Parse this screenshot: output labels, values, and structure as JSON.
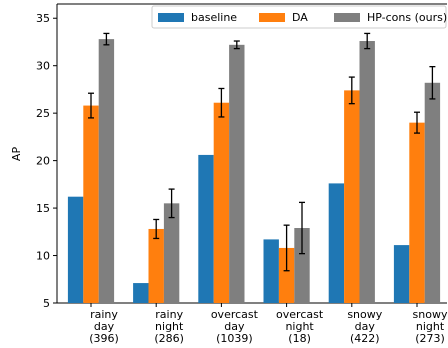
{
  "chart_data": {
    "type": "bar",
    "title": "",
    "xlabel": "",
    "ylabel": "AP",
    "ylim": [
      5,
      36.5
    ],
    "yticks": [
      5,
      10,
      15,
      20,
      25,
      30,
      35
    ],
    "categories": [
      [
        "rainy",
        "day",
        "(396)"
      ],
      [
        "rainy",
        "night",
        "(286)"
      ],
      [
        "overcast",
        "day",
        "(1039)"
      ],
      [
        "overcast",
        "night",
        "(18)"
      ],
      [
        "snowy",
        "day",
        "(422)"
      ],
      [
        "snowy",
        "night",
        "(273)"
      ]
    ],
    "series": [
      {
        "name": "baseline",
        "color": "#1f77b4",
        "values": [
          16.2,
          7.1,
          20.6,
          11.7,
          17.6,
          11.1
        ],
        "errors": [
          0,
          0,
          0,
          0,
          0,
          0
        ]
      },
      {
        "name": "DA",
        "color": "#ff7f0e",
        "values": [
          25.8,
          12.8,
          26.1,
          10.8,
          27.4,
          24.0
        ],
        "errors": [
          1.3,
          1.0,
          1.5,
          2.4,
          1.4,
          1.1
        ]
      },
      {
        "name": "HP-cons (ours)",
        "color": "#7f7f7f",
        "values": [
          32.8,
          15.5,
          32.2,
          12.9,
          32.6,
          28.2
        ],
        "errors": [
          0.6,
          1.5,
          0.4,
          2.7,
          0.8,
          1.7
        ]
      }
    ],
    "legend": "top-right",
    "grid": false
  }
}
